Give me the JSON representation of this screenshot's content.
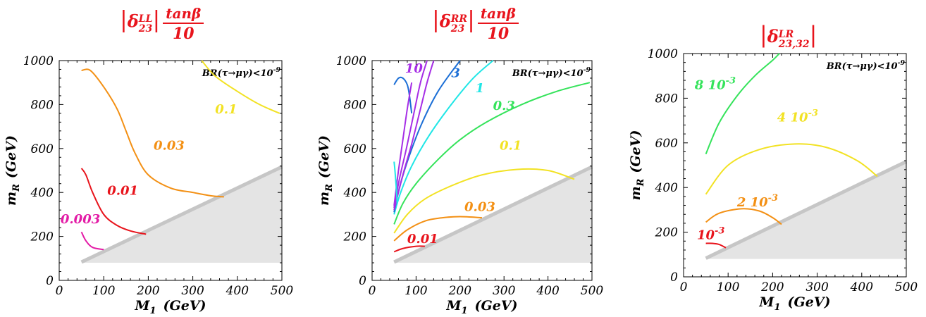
{
  "chart_data": [
    {
      "type": "line",
      "title": "|δ23^LL| tanβ/10",
      "title_parts": {
        "open": "|",
        "delta": "δ",
        "sup": "LL",
        "sub": "23",
        "close": "|",
        "num": "tanβ",
        "den": "10"
      },
      "xlabel": "M1 (GeV)",
      "xlabel_main": "M",
      "xlabel_sub": "1",
      "xlabel_unit": "(GeV)",
      "ylabel": "mR (GeV)",
      "ylabel_main": "m",
      "ylabel_sub": "R",
      "ylabel_unit": "(GeV)",
      "xlim": [
        0,
        500
      ],
      "ylim": [
        0,
        1000
      ],
      "xticks": [
        "0",
        "100",
        "200",
        "300",
        "400",
        "500"
      ],
      "yticks": [
        "0",
        "200",
        "400",
        "600",
        "800",
        "1000"
      ],
      "annotation": "BR(τ→μγ)<10^-9",
      "excluded_region": {
        "x": [
          50,
          500,
          500,
          50
        ],
        "y": [
          80,
          80,
          510,
          80
        ]
      },
      "series": [
        {
          "name": "0.003",
          "color": "#e31ba6",
          "x": [
            50,
            60,
            75,
            100
          ],
          "y": [
            220,
            180,
            150,
            140
          ]
        },
        {
          "name": "0.01",
          "color": "#e8141c",
          "x": [
            50,
            60,
            75,
            100,
            130,
            160,
            195
          ],
          "y": [
            510,
            480,
            400,
            300,
            250,
            225,
            210
          ]
        },
        {
          "name": "0.03",
          "color": "#f39014",
          "x": [
            50,
            70,
            100,
            130,
            150,
            170,
            200,
            250,
            300,
            340,
            370
          ],
          "y": [
            955,
            955,
            880,
            780,
            680,
            580,
            480,
            420,
            400,
            385,
            380
          ]
        },
        {
          "name": "0.1",
          "color": "#f2e224",
          "x": [
            320,
            350,
            400,
            450,
            495
          ],
          "y": [
            1000,
            930,
            860,
            800,
            760
          ]
        }
      ],
      "labels": [
        {
          "text": "0.003",
          "color": "#e31ba6",
          "x": 3,
          "y": 260
        },
        {
          "text": "0.01",
          "color": "#e8141c",
          "x": 108,
          "y": 390
        },
        {
          "text": "0.03",
          "color": "#f39014",
          "x": 212,
          "y": 595
        },
        {
          "text": "0.1",
          "color": "#f2e224",
          "x": 350,
          "y": 760
        }
      ]
    },
    {
      "type": "line",
      "title": "|δ23^RR| tanβ/10",
      "title_parts": {
        "open": "|",
        "delta": "δ",
        "sup": "RR",
        "sub": "23",
        "close": "|",
        "num": "tanβ",
        "den": "10"
      },
      "xlabel": "M1 (GeV)",
      "xlabel_main": "M",
      "xlabel_sub": "1",
      "xlabel_unit": "(GeV)",
      "ylabel": "mR (GeV)",
      "ylabel_main": "m",
      "ylabel_sub": "R",
      "ylabel_unit": "(GeV)",
      "xlim": [
        0,
        500
      ],
      "ylim": [
        0,
        1000
      ],
      "xticks": [
        "0",
        "100",
        "200",
        "300",
        "400",
        "500"
      ],
      "yticks": [
        "0",
        "200",
        "400",
        "600",
        "800",
        "1000"
      ],
      "annotation": "BR(τ→μγ)<10^-9",
      "excluded_region": {
        "x": [
          50,
          500,
          500,
          50
        ],
        "y": [
          80,
          80,
          510,
          80
        ]
      },
      "series": [
        {
          "name": "0.01",
          "color": "#e8141c",
          "x": [
            50,
            70,
            100,
            120
          ],
          "y": [
            130,
            145,
            155,
            155
          ]
        },
        {
          "name": "0.03",
          "color": "#f39014",
          "x": [
            50,
            80,
            120,
            160,
            200,
            250
          ],
          "y": [
            180,
            230,
            270,
            285,
            290,
            285
          ]
        },
        {
          "name": "0.1",
          "color": "#f2e224",
          "x": [
            50,
            80,
            120,
            180,
            250,
            330,
            400,
            460
          ],
          "y": [
            215,
            300,
            370,
            430,
            480,
            505,
            500,
            460
          ]
        },
        {
          "name": "0.3",
          "color": "#35e35b",
          "x": [
            50,
            70,
            100,
            150,
            200,
            260,
            340,
            420,
            495
          ],
          "y": [
            255,
            350,
            440,
            550,
            640,
            720,
            800,
            860,
            900
          ]
        },
        {
          "name": "1",
          "color": "#20e6e6",
          "x": [
            50,
            65,
            90,
            130,
            180,
            230,
            275
          ],
          "y": [
            300,
            400,
            520,
            660,
            800,
            920,
            1000
          ]
        },
        {
          "name": "3",
          "color": "#1c6fd6",
          "x": [
            50,
            62,
            80,
            110,
            150,
            200
          ],
          "y": [
            310,
            420,
            540,
            700,
            860,
            1000
          ]
        },
        {
          "name": "3",
          "color": "#1c6fd6",
          "x": [
            50,
            60,
            70,
            80,
            85,
            90
          ],
          "y": [
            890,
            920,
            920,
            890,
            840,
            760
          ]
        },
        {
          "name": "10",
          "color": "#a62ee6",
          "x": [
            50,
            70,
            90,
            110,
            125,
            140
          ],
          "y": [
            320,
            480,
            620,
            780,
            900,
            1000
          ]
        },
        {
          "name": "10",
          "color": "#a62ee6",
          "x": [
            50,
            62,
            78,
            95,
            110,
            125
          ],
          "y": [
            330,
            460,
            600,
            760,
            900,
            1000
          ]
        },
        {
          "name": "10",
          "color": "#a62ee6",
          "x": [
            50,
            55,
            60,
            70,
            80,
            90
          ],
          "y": [
            340,
            420,
            500,
            640,
            780,
            900
          ]
        },
        {
          "name": "1",
          "color": "#20e6e6",
          "x": [
            50,
            52,
            55,
            57
          ],
          "y": [
            540,
            500,
            420,
            350
          ]
        }
      ],
      "labels": [
        {
          "text": "0.01",
          "color": "#e8141c",
          "x": 80,
          "y": 170
        },
        {
          "text": "0.03",
          "color": "#f39014",
          "x": 210,
          "y": 315
        },
        {
          "text": "0.1",
          "color": "#f2e224",
          "x": 290,
          "y": 595
        },
        {
          "text": "0.3",
          "color": "#35e35b",
          "x": 275,
          "y": 775
        },
        {
          "text": "1",
          "color": "#20e6e6",
          "x": 235,
          "y": 855
        },
        {
          "text": "3",
          "color": "#1c6fd6",
          "x": 180,
          "y": 925
        },
        {
          "text": "10",
          "color": "#a62ee6",
          "x": 75,
          "y": 945
        }
      ]
    },
    {
      "type": "line",
      "title": "|δ23,32^LR|",
      "title_parts": {
        "open": "|",
        "delta": "δ",
        "sup": "LR",
        "sub": "23,32",
        "close": "|",
        "num": "",
        "den": ""
      },
      "xlabel": "M1 (GeV)",
      "xlabel_main": "M",
      "xlabel_sub": "1",
      "xlabel_unit": "(GeV)",
      "ylabel": "mR (GeV)",
      "ylabel_main": "m",
      "ylabel_sub": "R",
      "ylabel_unit": "(GeV)",
      "xlim": [
        0,
        500
      ],
      "ylim": [
        0,
        1000
      ],
      "xticks": [
        "0",
        "100",
        "200",
        "300",
        "400",
        "500"
      ],
      "yticks": [
        "0",
        "200",
        "400",
        "600",
        "800",
        "1000"
      ],
      "annotation": "BR(τ→μγ)<10^-9",
      "excluded_region": {
        "x": [
          50,
          500,
          500,
          50
        ],
        "y": [
          80,
          80,
          510,
          80
        ]
      },
      "series": [
        {
          "name": "10^-3",
          "color": "#e8141c",
          "x": [
            50,
            65,
            80,
            95
          ],
          "y": [
            150,
            150,
            145,
            130
          ]
        },
        {
          "name": "2 10^-3",
          "color": "#f39014",
          "x": [
            50,
            80,
            130,
            170,
            200,
            220
          ],
          "y": [
            245,
            285,
            305,
            295,
            265,
            235
          ]
        },
        {
          "name": "4 10^-3",
          "color": "#f2e224",
          "x": [
            50,
            100,
            170,
            250,
            320,
            390,
            435
          ],
          "y": [
            370,
            500,
            570,
            595,
            580,
            520,
            450
          ]
        },
        {
          "name": "8 10^-3",
          "color": "#35e35b",
          "x": [
            50,
            80,
            120,
            160,
            200,
            215
          ],
          "y": [
            550,
            690,
            810,
            900,
            970,
            1000
          ]
        }
      ],
      "labels": [
        {
          "text": "10^-3",
          "color": "#e8141c",
          "x": 30,
          "y": 168
        },
        {
          "text": "2 10^-3",
          "color": "#f39014",
          "x": 120,
          "y": 315
        },
        {
          "text": "4 10^-3",
          "color": "#f2e224",
          "x": 210,
          "y": 695
        },
        {
          "text": "8 10^-3",
          "color": "#35e35b",
          "x": 25,
          "y": 840
        }
      ]
    }
  ]
}
